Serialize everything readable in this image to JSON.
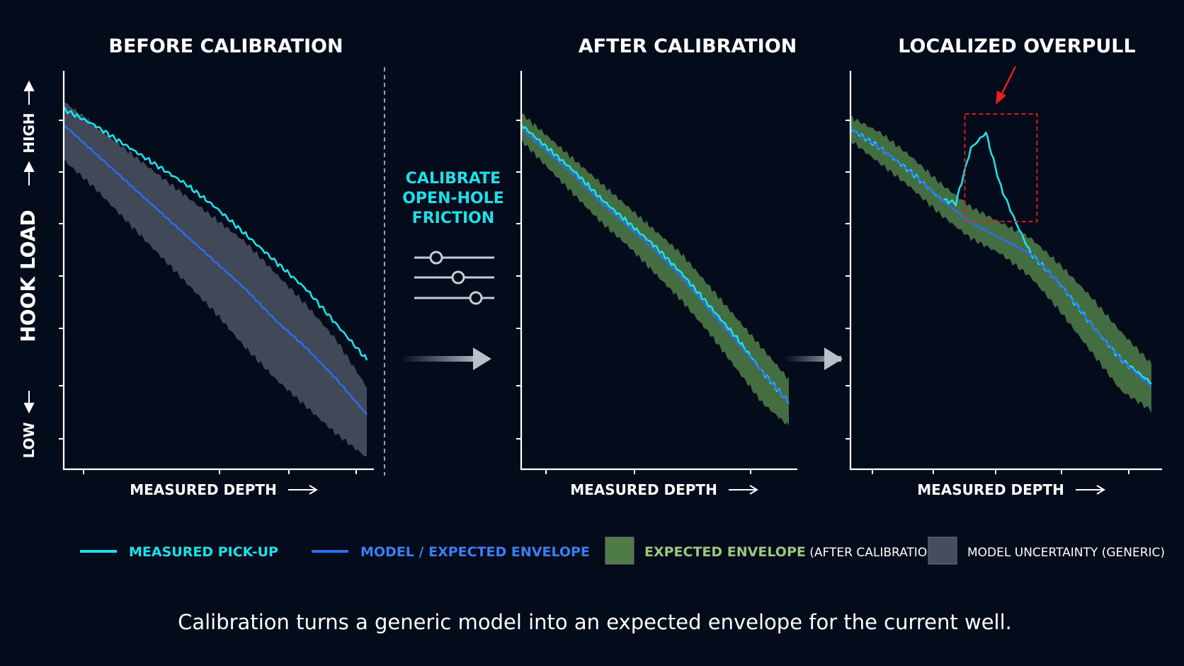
{
  "colors": {
    "background": "#040b1b",
    "measured": "#1ee0e8",
    "model": "#2a6ff0",
    "envelope_after": "#4f7b48",
    "uncertainty": "#464e5d",
    "highlight": "#e8201c"
  },
  "y_axis": {
    "label": "HOOK LOAD",
    "high": "HIGH",
    "low": "LOW"
  },
  "annotation": {
    "calibrate": [
      "CALIBRATE",
      "OPEN-HOLE",
      "FRICTION"
    ],
    "sliders_icon": "slider-controls-icon",
    "arrow_icon": "right-arrow-icon"
  },
  "caption": "Calibration turns a generic model into an expected envelope for the current well.",
  "legend": [
    {
      "label": "MEASURED PICK-UP",
      "suffix": "",
      "color": "#1ee0e8",
      "swatch": "line"
    },
    {
      "label": "MODEL / EXPECTED ENVELOPE",
      "suffix": "",
      "color": "#2a6ff0",
      "swatch": "line"
    },
    {
      "label": "EXPECTED ENVELOPE",
      "suffix": " (AFTER CALIBRATION)",
      "color": "#4f7b48",
      "swatch": "box"
    },
    {
      "label": "MODEL UNCERTAINTY (GENERIC)",
      "suffix": "",
      "color": "#464e5d",
      "swatch": "box"
    }
  ],
  "chart_data": [
    {
      "type": "line",
      "title": "BEFORE CALIBRATION",
      "xlabel": "MEASURED DEPTH",
      "ylabel": "HOOK LOAD",
      "xlim": [
        0,
        1
      ],
      "ylim": [
        0,
        1
      ],
      "x": [
        0,
        0.1,
        0.2,
        0.3,
        0.4,
        0.5,
        0.6,
        0.7,
        0.8,
        0.9,
        1.0
      ],
      "series": [
        {
          "name": "MEASURED PICK-UP",
          "values": [
            0.92,
            0.88,
            0.83,
            0.78,
            0.73,
            0.67,
            0.6,
            0.53,
            0.46,
            0.37,
            0.28
          ]
        },
        {
          "name": "MODEL / EXPECTED ENVELOPE",
          "values": [
            0.88,
            0.81,
            0.74,
            0.67,
            0.6,
            0.53,
            0.46,
            0.38,
            0.31,
            0.23,
            0.14
          ]
        }
      ],
      "band": {
        "name": "MODEL UNCERTAINTY (GENERIC)",
        "lower": [
          0.79,
          0.72,
          0.64,
          0.56,
          0.48,
          0.4,
          0.31,
          0.23,
          0.16,
          0.09,
          0.03
        ],
        "upper": [
          0.94,
          0.88,
          0.82,
          0.76,
          0.7,
          0.64,
          0.58,
          0.5,
          0.42,
          0.33,
          0.21
        ]
      }
    },
    {
      "type": "line",
      "title": "AFTER CALIBRATION",
      "xlabel": "MEASURED DEPTH",
      "xlim": [
        0,
        1
      ],
      "ylim": [
        0,
        1
      ],
      "x": [
        0,
        0.1,
        0.2,
        0.3,
        0.4,
        0.5,
        0.6,
        0.7,
        0.8,
        0.9,
        1.0
      ],
      "series": [
        {
          "name": "MEASURED PICK-UP",
          "values": [
            0.88,
            0.82,
            0.76,
            0.69,
            0.63,
            0.57,
            0.5,
            0.42,
            0.34,
            0.25,
            0.17
          ]
        },
        {
          "name": "MODEL / EXPECTED ENVELOPE",
          "values": [
            0.87,
            0.81,
            0.75,
            0.68,
            0.62,
            0.56,
            0.49,
            0.41,
            0.33,
            0.25,
            0.17
          ]
        }
      ],
      "band": {
        "name": "EXPECTED ENVELOPE (AFTER CALIBRATION)",
        "lower": [
          0.84,
          0.77,
          0.7,
          0.63,
          0.57,
          0.5,
          0.43,
          0.35,
          0.26,
          0.17,
          0.11
        ],
        "upper": [
          0.91,
          0.85,
          0.79,
          0.73,
          0.67,
          0.61,
          0.55,
          0.47,
          0.39,
          0.31,
          0.23
        ]
      }
    },
    {
      "type": "line",
      "title": "LOCALIZED OVERPULL",
      "xlabel": "MEASURED DEPTH",
      "xlim": [
        0,
        1
      ],
      "ylim": [
        0,
        1
      ],
      "x": [
        0,
        0.1,
        0.2,
        0.3,
        0.35,
        0.4,
        0.45,
        0.5,
        0.55,
        0.6,
        0.7,
        0.8,
        0.9,
        1.0
      ],
      "series": [
        {
          "name": "MEASURED PICK-UP",
          "values": [
            0.87,
            0.82,
            0.76,
            0.69,
            0.68,
            0.82,
            0.86,
            0.72,
            0.63,
            0.55,
            0.47,
            0.37,
            0.28,
            0.22
          ]
        },
        {
          "name": "MODEL / EXPECTED ENVELOPE",
          "values": [
            0.87,
            0.82,
            0.76,
            0.69,
            0.66,
            0.63,
            0.61,
            0.59,
            0.57,
            0.55,
            0.47,
            0.37,
            0.28,
            0.21
          ]
        }
      ],
      "band": {
        "name": "EXPECTED ENVELOPE (AFTER CALIBRATION)",
        "lower": [
          0.84,
          0.78,
          0.72,
          0.65,
          0.62,
          0.59,
          0.57,
          0.55,
          0.52,
          0.49,
          0.4,
          0.3,
          0.2,
          0.15
        ],
        "upper": [
          0.9,
          0.86,
          0.8,
          0.73,
          0.7,
          0.67,
          0.65,
          0.63,
          0.61,
          0.59,
          0.52,
          0.44,
          0.35,
          0.27
        ]
      },
      "highlight": {
        "label": "overpull",
        "x_range": [
          0.38,
          0.62
        ]
      }
    }
  ]
}
